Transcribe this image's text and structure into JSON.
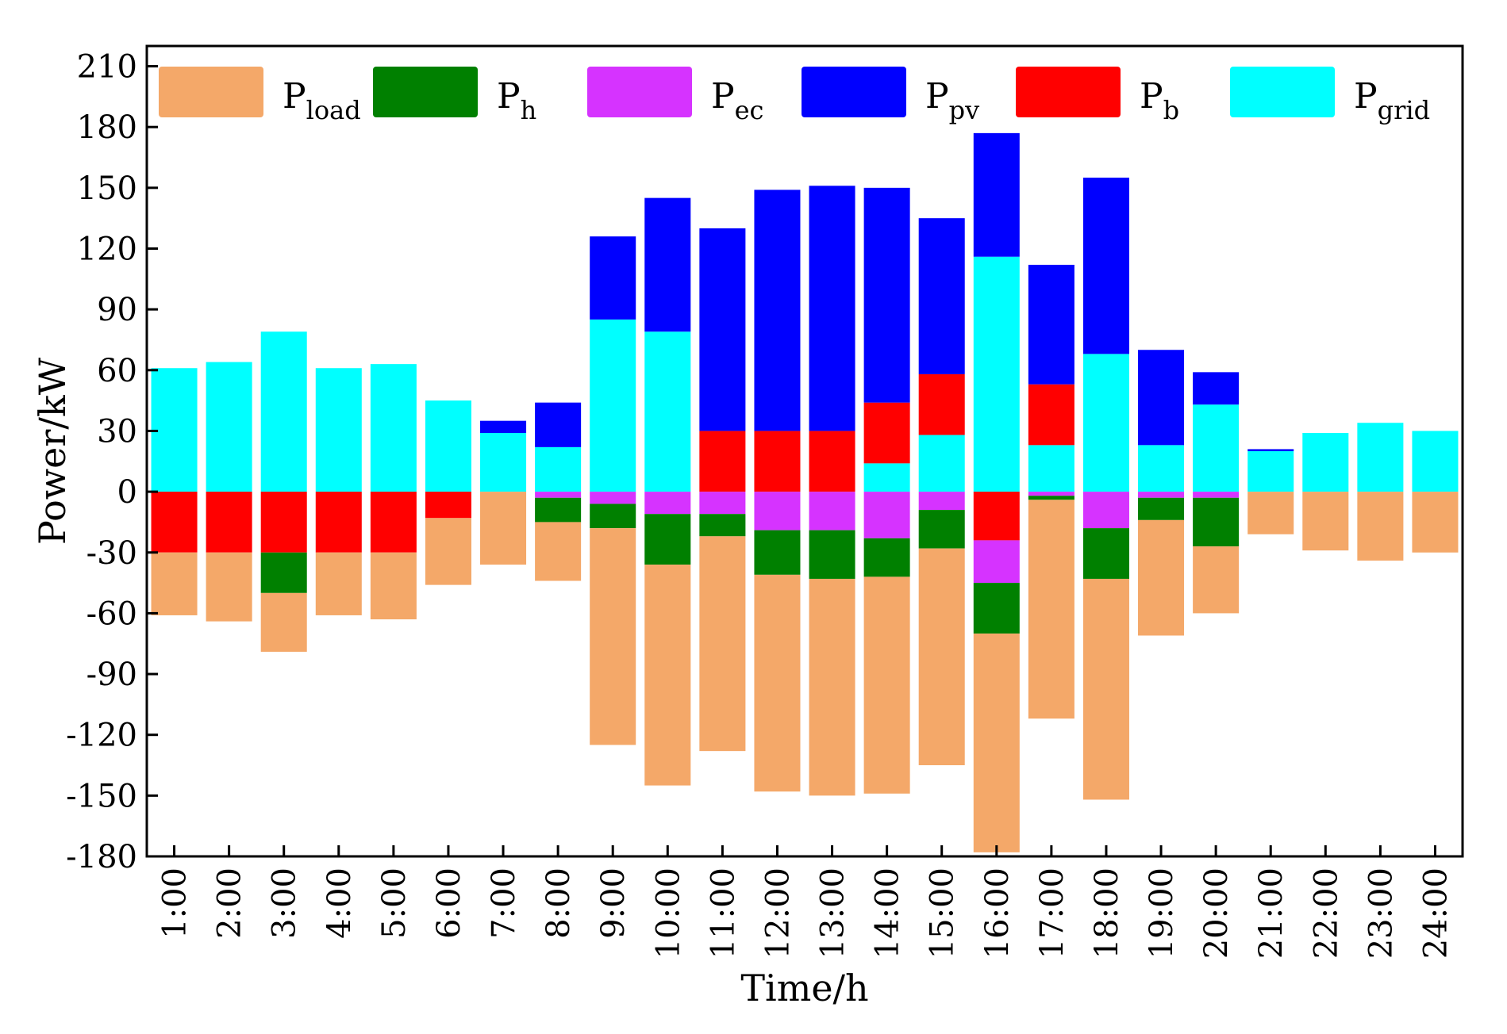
{
  "chart_data": {
    "type": "bar",
    "stacked": "diverging",
    "title": "",
    "xlabel": "Time/h",
    "ylabel": "Power/kW",
    "ylim": [
      -180,
      220
    ],
    "yticks": [
      -180,
      -150,
      -120,
      -90,
      -60,
      -30,
      0,
      30,
      60,
      90,
      120,
      150,
      180,
      210
    ],
    "grid": false,
    "legend_position": "top",
    "categories": [
      "1:00",
      "2:00",
      "3:00",
      "4:00",
      "5:00",
      "6:00",
      "7:00",
      "8:00",
      "9:00",
      "10:00",
      "11:00",
      "12:00",
      "13:00",
      "14:00",
      "15:00",
      "16:00",
      "17:00",
      "18:00",
      "19:00",
      "20:00",
      "21:00",
      "22:00",
      "23:00",
      "24:00"
    ],
    "series": [
      {
        "key": "load",
        "name": "P",
        "sub": "load",
        "color": "#F4A869",
        "values": [
          -31,
          -34,
          -29,
          -31,
          -33,
          -33,
          -36,
          -29,
          -107,
          -109,
          -106,
          -107,
          -107,
          -107,
          -107,
          -108,
          -108,
          -109,
          -57,
          -33,
          -21,
          -29,
          -34,
          -30
        ]
      },
      {
        "key": "h",
        "name": "P",
        "sub": "h",
        "color": "#008000",
        "values": [
          0,
          0,
          -20,
          0,
          0,
          0,
          0,
          -12,
          -12,
          -25,
          -11,
          -22,
          -24,
          -19,
          -19,
          -25,
          -2,
          -25,
          -11,
          -24,
          0,
          0,
          0,
          0
        ]
      },
      {
        "key": "ec",
        "name": "P",
        "sub": "ec",
        "color": "#D633FF",
        "values": [
          0,
          0,
          0,
          0,
          0,
          0,
          0,
          -3,
          -6,
          -11,
          -11,
          -19,
          -19,
          -23,
          -9,
          -21,
          -2,
          -18,
          -3,
          -3,
          0,
          0,
          0,
          0
        ]
      },
      {
        "key": "pv",
        "name": "P",
        "sub": "pv",
        "color": "#0000FF",
        "values": [
          0,
          0,
          0,
          0,
          0,
          0,
          6,
          22,
          41,
          66,
          100,
          119,
          121,
          106,
          77,
          61,
          59,
          87,
          47,
          16,
          1,
          0,
          0,
          0
        ]
      },
      {
        "key": "b",
        "name": "P",
        "sub": "b",
        "color": "#FF0000",
        "values": [
          -30,
          -30,
          -30,
          -30,
          -30,
          -13,
          0,
          0,
          0,
          0,
          30,
          30,
          30,
          30,
          30,
          -24,
          30,
          0,
          0,
          0,
          0,
          0,
          0,
          0
        ]
      },
      {
        "key": "grid",
        "name": "P",
        "sub": "grid",
        "color": "#00FFFF",
        "values": [
          61,
          64,
          79,
          61,
          63,
          45,
          29,
          22,
          85,
          79,
          0,
          0,
          0,
          14,
          28,
          116,
          23,
          68,
          23,
          43,
          20,
          29,
          34,
          30
        ]
      }
    ],
    "stack_order_positive": [
      "grid",
      "b",
      "pv"
    ],
    "stack_order_negative": [
      "b",
      "ec",
      "h",
      "load"
    ],
    "legend_order": [
      "load",
      "h",
      "ec",
      "pv",
      "b",
      "grid"
    ]
  }
}
